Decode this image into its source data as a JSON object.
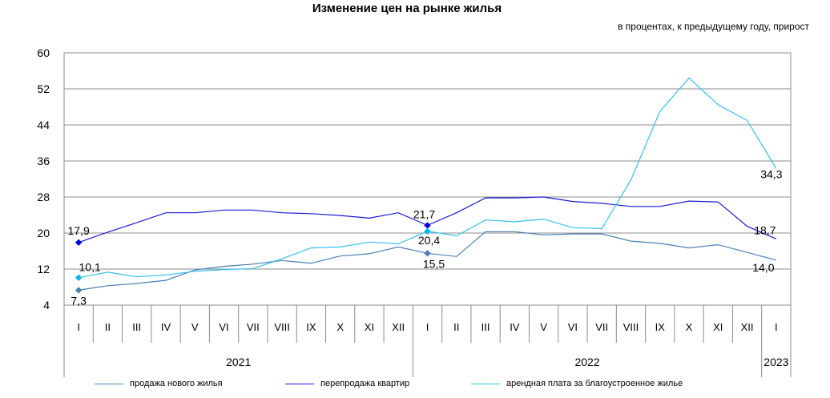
{
  "title": "Изменение цен на рынке жилья",
  "subtitle": "в процентах, к предыдущему году, прирост",
  "chart_data": {
    "type": "line",
    "title": "Изменение цен на рынке жилья",
    "subtitle": "в процентах, к предыдущему году, прирост",
    "ylim": [
      4,
      60
    ],
    "yticks": [
      "60",
      "52",
      "44",
      "36",
      "28",
      "20",
      "12",
      "4"
    ],
    "ytick_values": [
      60,
      52,
      44,
      36,
      28,
      20,
      12,
      4
    ],
    "categories": [
      "I",
      "II",
      "III",
      "IV",
      "V",
      "VI",
      "VII",
      "VIII",
      "IX",
      "X",
      "XI",
      "XII",
      "I",
      "II",
      "III",
      "IV",
      "V",
      "VI",
      "VII",
      "VIII",
      "IX",
      "X",
      "XI",
      "XII",
      "I"
    ],
    "years": [
      {
        "label": "2021",
        "start": 0,
        "end": 11
      },
      {
        "label": "2022",
        "start": 12,
        "end": 23
      },
      {
        "label": "2023",
        "start": 24,
        "end": 24
      }
    ],
    "grid": true,
    "legend_position": "bottom",
    "series": [
      {
        "name": "продажа нового  жилья",
        "color": "#4a7fb5",
        "values": [
          7.3,
          8.3,
          8.8,
          9.5,
          11.8,
          12.6,
          13.1,
          13.9,
          13.3,
          14.9,
          15.4,
          16.9,
          15.5,
          14.8,
          20.3,
          20.3,
          19.6,
          19.8,
          19.8,
          18.2,
          17.7,
          16.7,
          17.4,
          15.7,
          14.0
        ]
      },
      {
        "name": "перепродажа  квартир",
        "color": "#1a1ad6",
        "values": [
          17.9,
          20.2,
          22.3,
          24.5,
          24.5,
          25.1,
          25.1,
          24.5,
          24.3,
          23.9,
          23.3,
          24.5,
          21.7,
          24.5,
          27.8,
          27.8,
          28.0,
          27.0,
          26.6,
          25.9,
          25.9,
          27.1,
          26.9,
          21.5,
          18.7
        ]
      },
      {
        "name": "арендная плата за благоустроенное   жилье",
        "color": "#33c2ea",
        "values": [
          10.1,
          11.3,
          10.3,
          10.7,
          11.5,
          11.9,
          12.1,
          14.3,
          16.7,
          16.9,
          18.0,
          17.6,
          20.4,
          19.4,
          22.9,
          22.5,
          23.1,
          21.2,
          21.0,
          31.8,
          47.0,
          54.4,
          48.5,
          45.0,
          34.3
        ]
      }
    ],
    "data_labels": [
      {
        "series": 0,
        "index": 0,
        "text": "7,3"
      },
      {
        "series": 0,
        "index": 12,
        "text": "15,5"
      },
      {
        "series": 0,
        "index": 24,
        "text": "14,0"
      },
      {
        "series": 1,
        "index": 0,
        "text": "17,9"
      },
      {
        "series": 1,
        "index": 12,
        "text": "21,7"
      },
      {
        "series": 1,
        "index": 24,
        "text": "18,7"
      },
      {
        "series": 2,
        "index": 0,
        "text": "10,1"
      },
      {
        "series": 2,
        "index": 12,
        "text": "20,4"
      },
      {
        "series": 2,
        "index": 24,
        "text": "34,3"
      }
    ]
  }
}
